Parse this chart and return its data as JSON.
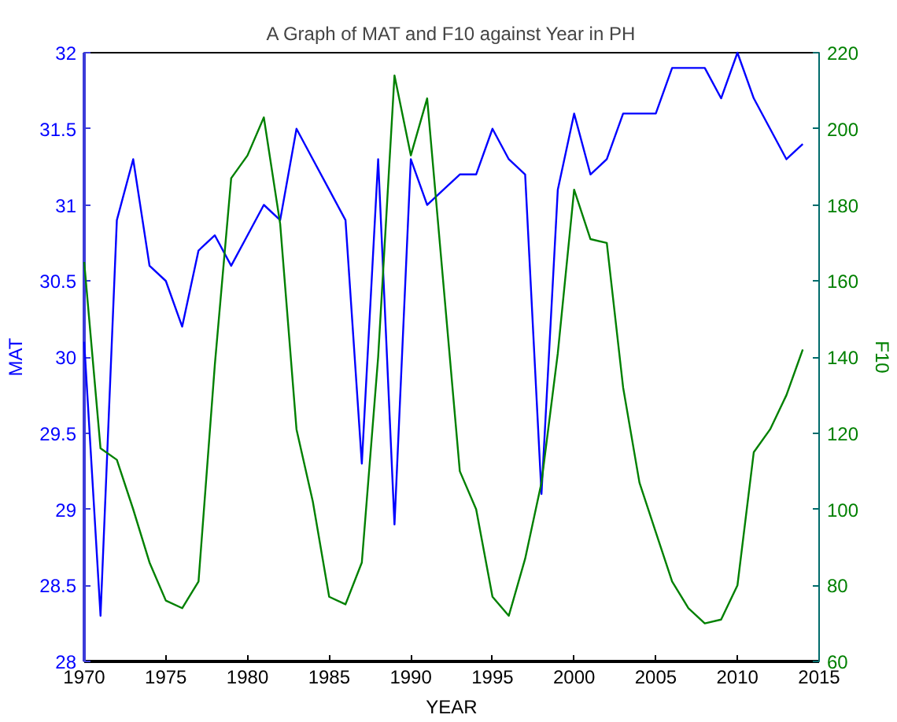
{
  "chart_data": {
    "type": "line",
    "title": "A Graph of MAT and F10 against Year in PH",
    "xlabel": "YEAR",
    "ylabel": "MAT",
    "y2label": "F10",
    "x": [
      1970,
      1971,
      1972,
      1973,
      1974,
      1975,
      1976,
      1977,
      1978,
      1979,
      1980,
      1981,
      1982,
      1983,
      1984,
      1985,
      1986,
      1987,
      1988,
      1989,
      1990,
      1991,
      1992,
      1993,
      1994,
      1995,
      1996,
      1997,
      1998,
      1999,
      2000,
      2001,
      2002,
      2003,
      2004,
      2005,
      2006,
      2007,
      2008,
      2009,
      2010,
      2011,
      2012,
      2013,
      2014
    ],
    "series": [
      {
        "color": "#0000ff",
        "values": [
          30.1,
          28.3,
          30.9,
          31.3,
          30.6,
          30.5,
          30.2,
          30.7,
          30.8,
          30.6,
          30.8,
          31.0,
          30.9,
          31.5,
          31.3,
          31.1,
          30.9,
          29.3,
          31.3,
          28.9,
          31.3,
          31.0,
          31.1,
          31.2,
          31.2,
          31.5,
          31.3,
          31.2,
          29.1,
          31.1,
          31.6,
          31.2,
          31.3,
          31.6,
          31.6,
          31.6,
          31.9,
          31.9,
          31.9,
          31.7,
          32.0,
          31.7,
          31.5,
          31.3,
          31.4
        ]
      },
      {
        "color": "#008000",
        "axis": "y2",
        "values": [
          165,
          116,
          113,
          100,
          86,
          76,
          74,
          81,
          138,
          187,
          193,
          203,
          175,
          121,
          102,
          77,
          75,
          86,
          140,
          214,
          193,
          208,
          159,
          110,
          100,
          77,
          72,
          87,
          107,
          141,
          184,
          171,
          170,
          132,
          107,
          94,
          81,
          74,
          70,
          71,
          80,
          115,
          121,
          130,
          142
        ]
      }
    ],
    "xlim": [
      1970,
      2015
    ],
    "xticks": [
      1970,
      1975,
      1980,
      1985,
      1990,
      1995,
      2000,
      2005,
      2010,
      2015
    ],
    "ylim": [
      28,
      32
    ],
    "yticks": [
      28,
      28.5,
      29,
      29.5,
      30,
      30.5,
      31,
      31.5,
      32
    ],
    "y2lim": [
      60,
      220
    ],
    "y2ticks": [
      60,
      80,
      100,
      120,
      140,
      160,
      180,
      200,
      220
    ]
  }
}
